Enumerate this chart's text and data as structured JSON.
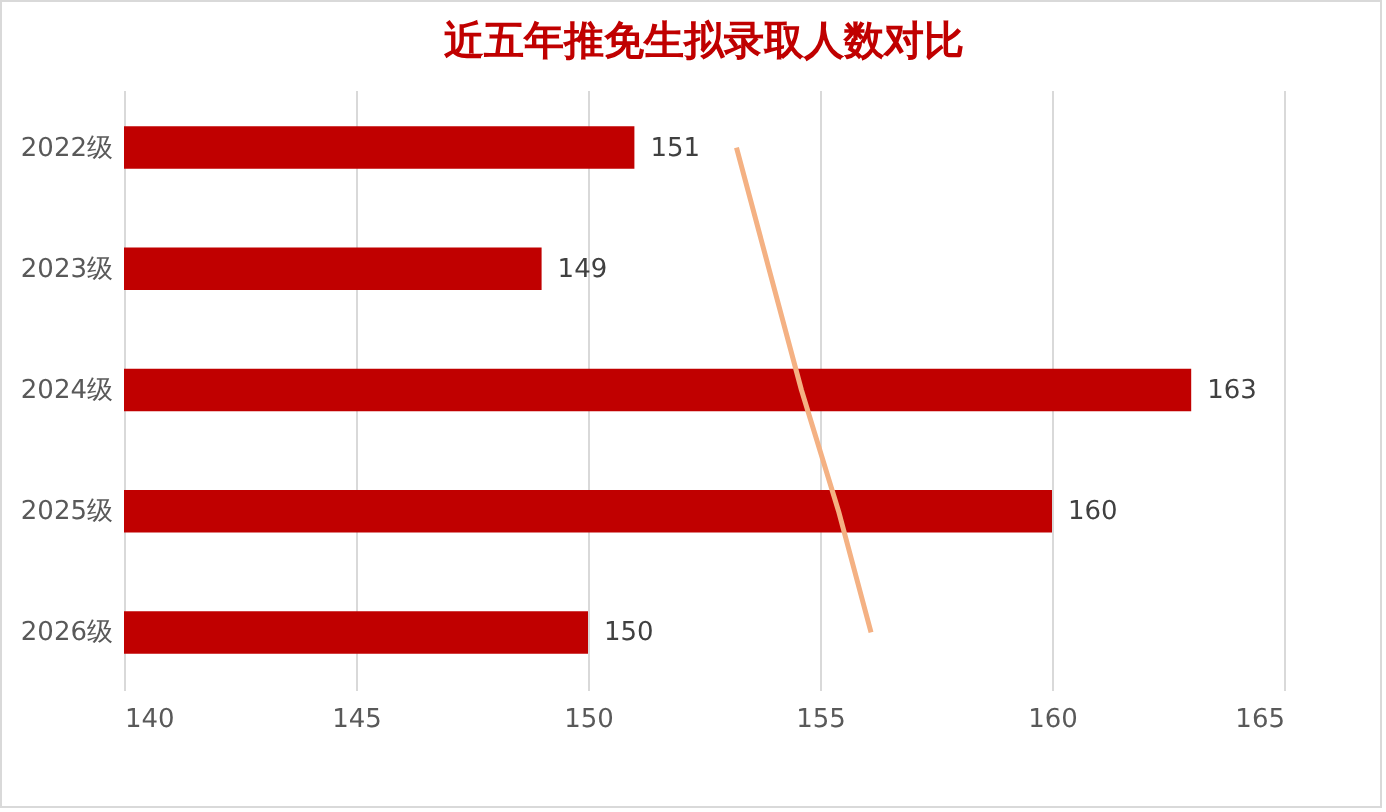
{
  "chart_data": {
    "type": "bar",
    "orientation": "horizontal",
    "title": "近五年推免生拟录取人数对比",
    "categories": [
      "2022级",
      "2023级",
      "2024级",
      "2025级",
      "2026级"
    ],
    "series": [
      {
        "color": "#c00000",
        "values": [
          151,
          149,
          163,
          160,
          150
        ],
        "value_labels": [
          "151",
          "149",
          "163",
          "160",
          "150"
        ]
      },
      {
        "type": "line",
        "color": "#f4b183",
        "values": [
          153.2,
          153.9,
          154.6,
          155.4,
          156.1
        ]
      }
    ],
    "xlim": [
      140,
      165
    ],
    "xticks": [
      140,
      145,
      150,
      155,
      160,
      165
    ],
    "grid": "x"
  }
}
